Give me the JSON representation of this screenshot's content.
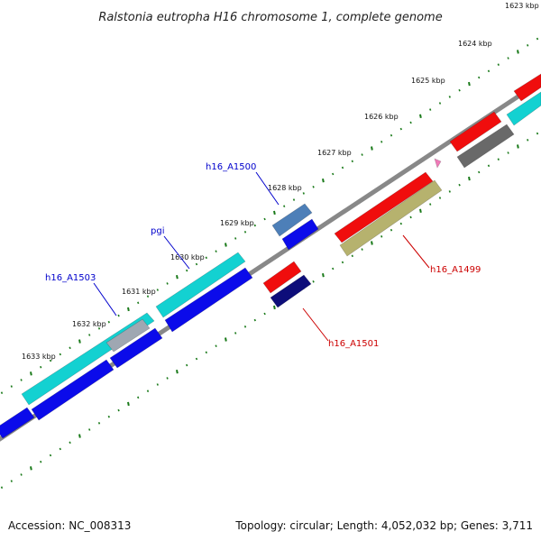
{
  "title": "Ralstonia eutropha H16 chromosome 1, complete genome",
  "footer": {
    "accession": "Accession: NC_008313",
    "summary": "Topology: circular; Length: 4,052,032 bp; Genes: 3,711"
  },
  "ticks": [
    "1623 kbp",
    "1624 kbp",
    "1625 kbp",
    "1626 kbp",
    "1627 kbp",
    "1628 kbp",
    "1629 kbp",
    "1630 kbp",
    "1631 kbp",
    "1632 kbp",
    "1633 kbp"
  ],
  "gene_labels": {
    "h16_A1500": {
      "text": "h16_A1500",
      "color": "#0000cc"
    },
    "pgi": {
      "text": "pgi",
      "color": "#0000cc"
    },
    "h16_A1503": {
      "text": "h16_A1503",
      "color": "#0000cc"
    },
    "h16_A1499": {
      "text": "h16_A1499",
      "color": "#cc0000"
    },
    "h16_A1501": {
      "text": "h16_A1501",
      "color": "#cc0000"
    }
  },
  "feature_colors": {
    "cyan": "#13d1d1",
    "blue": "#0b0bea",
    "red": "#f00d0d",
    "gray": "#696969",
    "olive": "#b6b26e",
    "steel": "#4d7fb8",
    "navy": "#0d0d7a",
    "silver": "#9fa7b2",
    "pink": "#f07ab8",
    "backbone": "#888888",
    "tick": "#1a7a1a"
  }
}
